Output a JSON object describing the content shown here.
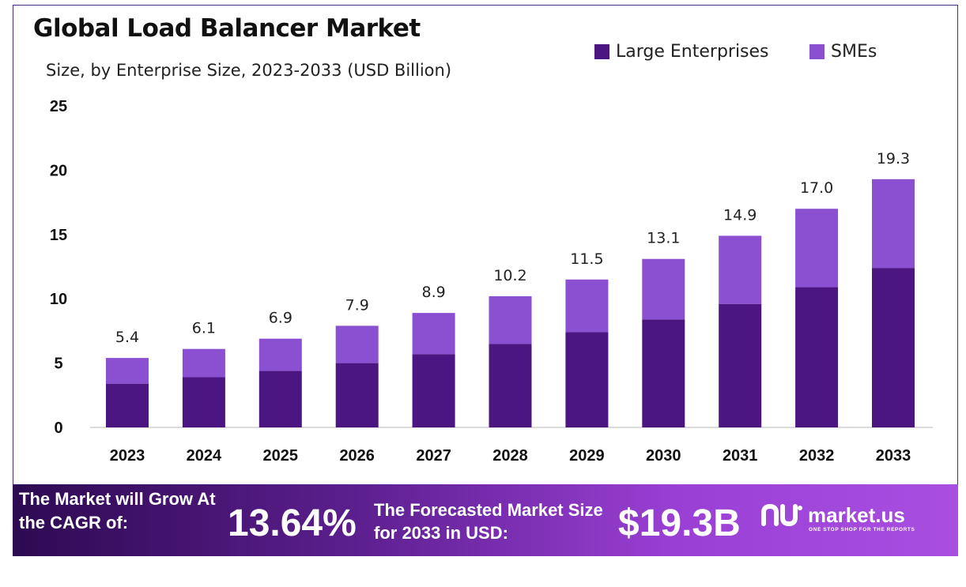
{
  "chart_data": {
    "type": "bar",
    "stacked": true,
    "title": "Global Load Balancer Market",
    "subtitle": "Size, by Enterprise Size, 2023-2033 (USD Billion)",
    "categories": [
      "2023",
      "2024",
      "2025",
      "2026",
      "2027",
      "2028",
      "2029",
      "2030",
      "2031",
      "2032",
      "2033"
    ],
    "series": [
      {
        "name": "Large Enterprises",
        "color": "#4b1681",
        "values": [
          3.4,
          3.9,
          4.4,
          5.0,
          5.7,
          6.5,
          7.4,
          8.4,
          9.6,
          10.9,
          12.4
        ]
      },
      {
        "name": "SMEs",
        "color": "#8b4fd1",
        "values": [
          2.0,
          2.2,
          2.5,
          2.9,
          3.2,
          3.7,
          4.1,
          4.7,
          5.3,
          6.1,
          6.9
        ]
      }
    ],
    "totals": [
      "5.4",
      "6.1",
      "6.9",
      "7.9",
      "8.9",
      "10.2",
      "11.5",
      "13.1",
      "14.9",
      "17.0",
      "19.3"
    ],
    "yticks": [
      "0",
      "5",
      "10",
      "15",
      "20",
      "25"
    ],
    "ylim": [
      0,
      25
    ],
    "xlabel": "",
    "ylabel": "",
    "legend_position": "top-right",
    "grid": false
  },
  "footer": {
    "cagr_label": "The Market will Grow At the CAGR of:",
    "cagr_value": "13.64%",
    "forecast_label": "The Forecasted Market Size for 2033 in USD:",
    "forecast_value": "$19.3B",
    "brand_name": "market.us",
    "brand_tagline": "ONE STOP SHOP FOR THE REPORTS"
  }
}
